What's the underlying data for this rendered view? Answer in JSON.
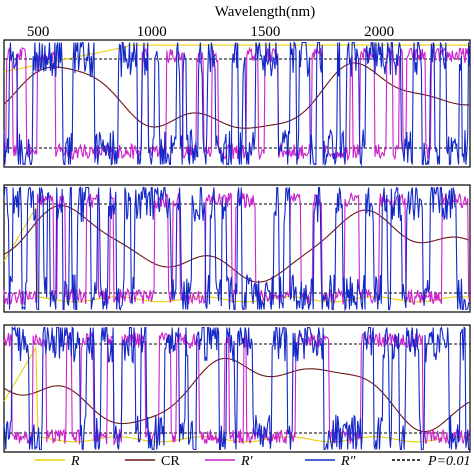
{
  "chart_data": {
    "type": "line",
    "xlabel": "Wavelength(nm)",
    "xticks": [
      500,
      1000,
      1500,
      2000
    ],
    "xlim": [
      350,
      2400
    ],
    "panels": 3,
    "legend": [
      {
        "label": "R",
        "color": "#e8d000",
        "style": "solid",
        "italic": true
      },
      {
        "label": "CR",
        "color": "#6b1a12",
        "style": "solid",
        "italic": false
      },
      {
        "label": "R′",
        "color": "#cc22cc",
        "style": "solid",
        "italic": true
      },
      {
        "label": "R″",
        "color": "#1428c8",
        "style": "solid",
        "italic": true
      },
      {
        "label": "P=0.01",
        "color": "#000000",
        "style": "dashed",
        "italic": true
      }
    ],
    "threshold_levels": [
      0.15,
      0.85
    ],
    "series_colors": {
      "R": "#e8d000",
      "CR": "#6b1a12",
      "R1": "#cc22cc",
      "R2": "#1428c8"
    }
  }
}
